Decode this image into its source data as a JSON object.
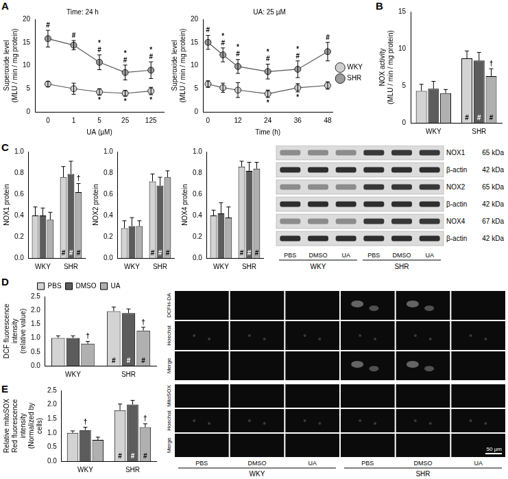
{
  "panel_labels": [
    "A",
    "B",
    "C",
    "D",
    "E"
  ],
  "chart_data": [
    {
      "type": "line",
      "title": "Time: 24 h",
      "x_label": "UA (µM)",
      "y_label": "Superoxide level (MLU / min / mg protein)",
      "categories": [
        "0",
        "1",
        "5",
        "25",
        "125"
      ],
      "ylim": [
        0,
        20
      ],
      "yticks": [
        0,
        5,
        10,
        15,
        20
      ],
      "grid": false,
      "marker": "circle",
      "series": [
        {
          "name": "WKY",
          "color": "#cfcfcf",
          "values": [
            6.0,
            5.0,
            4.3,
            4.0,
            4.5
          ],
          "errors": [
            0.6,
            1.2,
            0.7,
            0.6,
            0.8
          ],
          "marks": [
            [],
            [],
            [
              "*"
            ],
            [
              "*"
            ],
            [
              "*"
            ]
          ]
        },
        {
          "name": "SHR",
          "color": "#9b9b9b",
          "values": [
            15.8,
            14.4,
            10.7,
            8.5,
            9.0
          ],
          "errors": [
            1.8,
            1.0,
            1.6,
            1.6,
            1.8
          ],
          "marks": [
            [
              "#"
            ],
            [
              "#"
            ],
            [
              "*",
              "#"
            ],
            [
              "*",
              "#"
            ],
            [
              "*",
              "#"
            ]
          ]
        }
      ]
    },
    {
      "type": "line",
      "title": "UA: 25 µM",
      "x_label": "Time (h)",
      "y_label": "Superoxide level (MLU / min / mg protein)",
      "x": [
        0,
        6,
        12,
        24,
        36,
        48
      ],
      "xlim": [
        -2,
        50
      ],
      "xticks": [
        0,
        12,
        24,
        36,
        48
      ],
      "ylim": [
        0,
        20
      ],
      "yticks": [
        0,
        5,
        10,
        15,
        20
      ],
      "grid": false,
      "marker": "circle",
      "legend": "right",
      "series": [
        {
          "name": "WKY",
          "color": "#cfcfcf",
          "values": [
            6.0,
            5.2,
            4.7,
            3.9,
            5.2,
            5.7
          ],
          "errors": [
            0.7,
            1.0,
            1.6,
            0.8,
            0.9,
            0.8
          ],
          "marks": [
            [],
            [],
            [],
            [
              "*"
            ],
            [
              "*"
            ],
            []
          ]
        },
        {
          "name": "SHR",
          "color": "#9b9b9b",
          "values": [
            15.0,
            12.3,
            9.8,
            8.7,
            9.2,
            13.0
          ],
          "errors": [
            1.5,
            1.5,
            1.5,
            1.6,
            1.8,
            2.0
          ],
          "marks": [
            [
              "#"
            ],
            [
              "*",
              "#"
            ],
            [
              "*",
              "#"
            ],
            [
              "*",
              "#"
            ],
            [
              "*",
              "#"
            ],
            [
              "#"
            ]
          ]
        }
      ]
    },
    {
      "type": "bar",
      "y_label": "NOX activity (MLU / min / mg protein)",
      "categories": [
        "WKY",
        "SHR"
      ],
      "ylim": [
        0,
        15
      ],
      "yticks": [
        0,
        5,
        10,
        15
      ],
      "grid": false,
      "series": [
        {
          "name": "PBS",
          "color": "#d3d3d3",
          "values": [
            4.3,
            8.7
          ],
          "errors": [
            0.9,
            1.0
          ],
          "marks": [
            [],
            [
              "#"
            ]
          ]
        },
        {
          "name": "DMSO",
          "color": "#5c5c5c",
          "values": [
            4.6,
            8.4
          ],
          "errors": [
            1.0,
            1.1
          ],
          "marks": [
            [],
            [
              "#"
            ]
          ]
        },
        {
          "name": "UA",
          "color": "#b0b0b0",
          "values": [
            4.0,
            6.3
          ],
          "errors": [
            0.5,
            1.0
          ],
          "marks": [
            [],
            [
              "#",
              "†"
            ]
          ]
        }
      ]
    },
    {
      "type": "bar",
      "y_label": "NOX1 protein",
      "categories": [
        "WKY",
        "SHR"
      ],
      "ylim": [
        0,
        1.0
      ],
      "yticks": [
        {
          "value": 0,
          "label": "0.0"
        },
        {
          "value": 0.2,
          "label": "0.2"
        },
        {
          "value": 0.4,
          "label": "0.4"
        },
        {
          "value": 0.6,
          "label": "0.6"
        },
        {
          "value": 0.8,
          "label": "0.8"
        },
        {
          "value": 1.0,
          "label": "1.0"
        }
      ],
      "grid": false,
      "series": [
        {
          "name": "PBS",
          "color": "#d3d3d3",
          "values": [
            0.4,
            0.76
          ],
          "errors": [
            0.08,
            0.1
          ],
          "marks": [
            [],
            [
              "#"
            ]
          ]
        },
        {
          "name": "DMSO",
          "color": "#5c5c5c",
          "values": [
            0.4,
            0.79
          ],
          "errors": [
            0.07,
            0.12
          ],
          "marks": [
            [],
            [
              "#"
            ]
          ]
        },
        {
          "name": "UA",
          "color": "#b0b0b0",
          "values": [
            0.36,
            0.62
          ],
          "errors": [
            0.07,
            0.08
          ],
          "marks": [
            [],
            [
              "#",
              "†"
            ]
          ]
        }
      ]
    },
    {
      "type": "bar",
      "y_label": "NOX2 protein",
      "categories": [
        "WKY",
        "SHR"
      ],
      "ylim": [
        0,
        1.0
      ],
      "yticks": [
        {
          "value": 0,
          "label": "0.0"
        },
        {
          "value": 0.2,
          "label": "0.2"
        },
        {
          "value": 0.4,
          "label": "0.4"
        },
        {
          "value": 0.6,
          "label": "0.6"
        },
        {
          "value": 0.8,
          "label": "0.8"
        },
        {
          "value": 1.0,
          "label": "1.0"
        }
      ],
      "grid": false,
      "series": [
        {
          "name": "PBS",
          "color": "#d3d3d3",
          "values": [
            0.28,
            0.72
          ],
          "errors": [
            0.07,
            0.07
          ],
          "marks": [
            [],
            [
              "#"
            ]
          ]
        },
        {
          "name": "DMSO",
          "color": "#5c5c5c",
          "values": [
            0.3,
            0.68
          ],
          "errors": [
            0.08,
            0.08
          ],
          "marks": [
            [],
            [
              "#"
            ]
          ]
        },
        {
          "name": "UA",
          "color": "#b0b0b0",
          "values": [
            0.3,
            0.76
          ],
          "errors": [
            0.05,
            0.06
          ],
          "marks": [
            [],
            [
              "#"
            ]
          ]
        }
      ]
    },
    {
      "type": "bar",
      "y_label": "NOX4 protein",
      "categories": [
        "WKY",
        "SHR"
      ],
      "ylim": [
        0,
        1.0
      ],
      "yticks": [
        {
          "value": 0,
          "label": "0.0"
        },
        {
          "value": 0.2,
          "label": "0.2"
        },
        {
          "value": 0.4,
          "label": "0.4"
        },
        {
          "value": 0.6,
          "label": "0.6"
        },
        {
          "value": 0.8,
          "label": "0.8"
        },
        {
          "value": 1.0,
          "label": "1.0"
        }
      ],
      "grid": false,
      "series": [
        {
          "name": "PBS",
          "color": "#d3d3d3",
          "values": [
            0.4,
            0.86
          ],
          "errors": [
            0.05,
            0.05
          ],
          "marks": [
            [],
            [
              "#"
            ]
          ]
        },
        {
          "name": "DMSO",
          "color": "#5c5c5c",
          "values": [
            0.42,
            0.82
          ],
          "errors": [
            0.1,
            0.08
          ],
          "marks": [
            [],
            [
              "#"
            ]
          ]
        },
        {
          "name": "UA",
          "color": "#b0b0b0",
          "values": [
            0.38,
            0.84
          ],
          "errors": [
            0.1,
            0.06
          ],
          "marks": [
            [],
            [
              "#"
            ]
          ]
        }
      ]
    },
    {
      "type": "bar",
      "y_label": "DCF fluorescence intensity (relative value)",
      "categories": [
        "WKY",
        "SHR"
      ],
      "ylim": [
        0,
        2.5
      ],
      "yticks": [
        {
          "value": 0,
          "label": "0.0"
        },
        {
          "value": 0.5,
          "label": "0.5"
        },
        {
          "value": 1.0,
          "label": "1.0"
        },
        {
          "value": 1.5,
          "label": "1.5"
        },
        {
          "value": 2.0,
          "label": "2.0"
        },
        {
          "value": 2.5,
          "label": "2.5"
        }
      ],
      "grid": false,
      "legend": "top",
      "series": [
        {
          "name": "PBS",
          "color": "#d3d3d3",
          "values": [
            1.0,
            1.97
          ],
          "errors": [
            0.08,
            0.15
          ],
          "marks": [
            [],
            [
              "#"
            ]
          ]
        },
        {
          "name": "DMSO",
          "color": "#5c5c5c",
          "values": [
            1.0,
            1.9
          ],
          "errors": [
            0.08,
            0.15
          ],
          "marks": [
            [],
            [
              "#"
            ]
          ]
        },
        {
          "name": "UA",
          "color": "#b0b0b0",
          "values": [
            0.8,
            1.27
          ],
          "errors": [
            0.08,
            0.12
          ],
          "marks": [
            [
              "†"
            ],
            [
              "#",
              "†"
            ]
          ]
        }
      ]
    },
    {
      "type": "bar",
      "y_label": "Relative mitoSOX Red fluorescence intensity (Normalized by cells)",
      "categories": [
        "WKY",
        "SHR"
      ],
      "ylim": [
        0,
        2.5
      ],
      "yticks": [
        {
          "value": 0,
          "label": "0.0"
        },
        {
          "value": 0.5,
          "label": "0.5"
        },
        {
          "value": 1.0,
          "label": "1.0"
        },
        {
          "value": 1.5,
          "label": "1.5"
        },
        {
          "value": 2.0,
          "label": "2.0"
        },
        {
          "value": 2.5,
          "label": "2.5"
        }
      ],
      "grid": false,
      "series": [
        {
          "name": "PBS",
          "color": "#d3d3d3",
          "values": [
            1.0,
            1.8
          ],
          "errors": [
            0.07,
            0.22
          ],
          "marks": [
            [],
            [
              "#"
            ]
          ]
        },
        {
          "name": "DMSO",
          "color": "#5c5c5c",
          "values": [
            1.1,
            2.0
          ],
          "errors": [
            0.1,
            0.15
          ],
          "marks": [
            [
              "†"
            ],
            [
              "#"
            ]
          ]
        },
        {
          "name": "UA",
          "color": "#b0b0b0",
          "values": [
            0.75,
            1.2
          ],
          "errors": [
            0.1,
            0.12
          ],
          "marks": [
            [],
            [
              "#",
              "†"
            ]
          ]
        }
      ]
    }
  ],
  "blot": {
    "rows": [
      {
        "protein": "NOX1",
        "size": "65 kDa"
      },
      {
        "protein": "β-actin",
        "size": "42 kDa"
      },
      {
        "protein": "NOX2",
        "size": "65 kDa"
      },
      {
        "protein": "β-actin",
        "size": "42 kDa"
      },
      {
        "protein": "NOX4",
        "size": "67 kDa"
      },
      {
        "protein": "β-actin",
        "size": "42 kDa"
      }
    ],
    "lanes": [
      "PBS",
      "DMSO",
      "UA",
      "PBS",
      "DMSO",
      "UA"
    ],
    "groups": [
      "WKY",
      "SHR"
    ]
  },
  "micrographs": {
    "D_rows": [
      "DCFH-DA",
      "Hoechst",
      "Merge"
    ],
    "E_rows": [
      "MitoSOX",
      "Hoechst",
      "Merge"
    ],
    "lanes": [
      "PBS",
      "DMSO",
      "UA",
      "PBS",
      "DMSO",
      "UA"
    ],
    "groups": [
      "WKY",
      "SHR"
    ],
    "scale_bar": "50 µm"
  }
}
